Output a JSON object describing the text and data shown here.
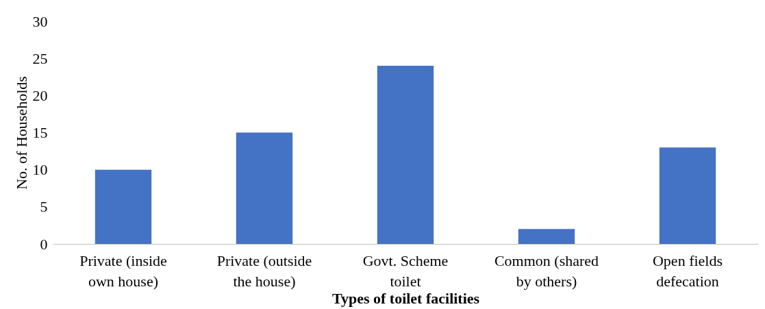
{
  "chart_data": {
    "type": "bar",
    "categories": [
      "Private (inside own house)",
      "Private (outside the house)",
      "Govt. Scheme toilet",
      "Common (shared by others)",
      "Open fields defecation"
    ],
    "values": [
      10,
      15,
      24,
      2,
      13
    ],
    "color": "#4472c4",
    "xlabel": "Types of toilet facilities",
    "ylabel": "No. of Households",
    "ylim": [
      0,
      30
    ],
    "yticks": [
      0,
      5,
      10,
      15,
      20,
      25,
      30
    ],
    "grid": false
  }
}
